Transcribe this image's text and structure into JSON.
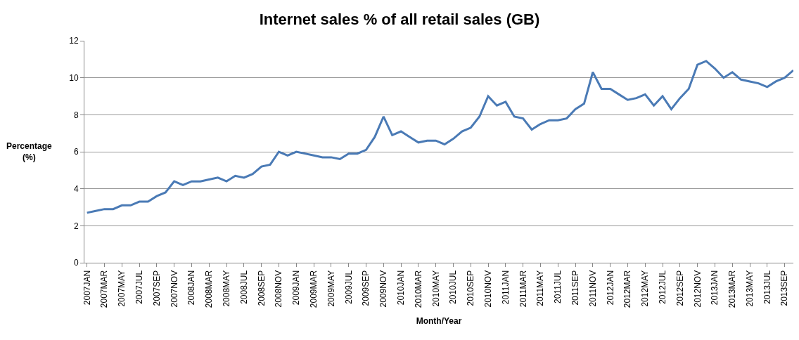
{
  "chart_data": {
    "type": "line",
    "title": "Internet sales % of all retail sales (GB)",
    "xlabel": "Month/Year",
    "ylabel": "Percentage\n(%)",
    "categories": [
      "2007JAN",
      null,
      "2007MAR",
      null,
      "2007MAY",
      null,
      "2007JUL",
      null,
      "2007SEP",
      null,
      "2007NOV",
      null,
      "2008JAN",
      null,
      "2008MAR",
      null,
      "2008MAY",
      null,
      "2008JUL",
      null,
      "2008SEP",
      null,
      "2008NOV",
      null,
      "2009JAN",
      null,
      "2009MAR",
      null,
      "2009MAY",
      null,
      "2009JUL",
      null,
      "2009SEP",
      null,
      "2009NOV",
      null,
      "2010JAN",
      null,
      "2010MAR",
      null,
      "2010MAY",
      null,
      "2010JUL",
      null,
      "2010SEP",
      null,
      "2010NOV",
      null,
      "2011JAN",
      null,
      "2011MAR",
      null,
      "2011MAY",
      null,
      "2011JUL",
      null,
      "2011SEP",
      null,
      "2011NOV",
      null,
      "2012JAN",
      null,
      "2012MAR",
      null,
      "2012MAY",
      null,
      "2012JUL",
      null,
      "2012SEP",
      null,
      "2012NOV",
      null,
      "2013JAN",
      null,
      "2013MAR",
      null,
      "2013MAY",
      null,
      "2013JUL",
      null,
      "2013SEP",
      null
    ],
    "series": [
      {
        "color": "#4a7ab5",
        "values": [
          2.7,
          2.8,
          2.9,
          2.9,
          3.1,
          3.1,
          3.3,
          3.3,
          3.6,
          3.8,
          4.4,
          4.2,
          4.4,
          4.4,
          4.5,
          4.6,
          4.4,
          4.7,
          4.6,
          4.8,
          5.2,
          5.3,
          6.0,
          5.8,
          6.0,
          5.9,
          5.8,
          5.7,
          5.7,
          5.6,
          5.9,
          5.9,
          6.1,
          6.8,
          7.9,
          6.9,
          7.1,
          6.8,
          6.5,
          6.6,
          6.6,
          6.4,
          6.7,
          7.1,
          7.3,
          7.9,
          9.0,
          8.5,
          8.7,
          7.9,
          7.8,
          7.2,
          7.5,
          7.7,
          7.7,
          7.8,
          8.3,
          8.6,
          10.3,
          9.4,
          9.4,
          9.1,
          8.8,
          8.9,
          9.1,
          8.5,
          9.0,
          8.3,
          8.9,
          9.4,
          10.7,
          10.9,
          10.5,
          10.0,
          10.3,
          9.9,
          9.8,
          9.7,
          9.5,
          9.8,
          10.0,
          10.4
        ]
      }
    ],
    "ylim": [
      0,
      12
    ],
    "yticks": [
      0,
      2,
      4,
      6,
      8,
      10,
      12
    ],
    "grid": "y",
    "marker": "none",
    "line_style": "solid"
  }
}
